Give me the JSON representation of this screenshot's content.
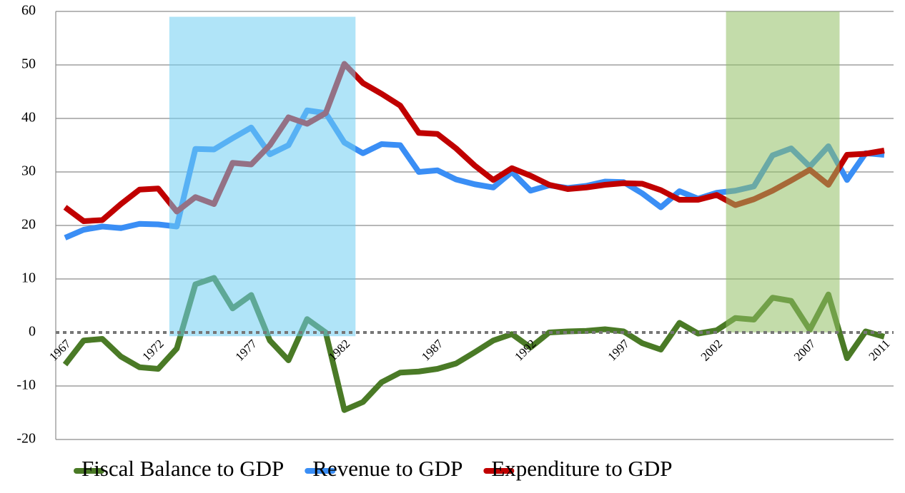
{
  "chart_data": {
    "type": "line",
    "x": [
      1967,
      1968,
      1969,
      1970,
      1971,
      1972,
      1973,
      1974,
      1975,
      1976,
      1977,
      1978,
      1979,
      1980,
      1981,
      1982,
      1983,
      1984,
      1985,
      1986,
      1987,
      1988,
      1989,
      1990,
      1991,
      1992,
      1993,
      1994,
      1995,
      1996,
      1997,
      1998,
      1999,
      2000,
      2001,
      2002,
      2003,
      2004,
      2005,
      2006,
      2007,
      2008,
      2009,
      2010,
      2011
    ],
    "series": [
      {
        "name": "Fiscal Balance to GDP",
        "color": "#4a7a26",
        "values": [
          -6,
          -1.5,
          -1.2,
          -4.5,
          -6.5,
          -6.8,
          -3,
          9,
          10.2,
          4.5,
          7,
          -1.5,
          -5.2,
          2.5,
          0,
          -14.5,
          -13,
          -9.3,
          -7.5,
          -7.3,
          -6.8,
          -5.8,
          -3.7,
          -1.5,
          -0.3,
          -2.8,
          0,
          0.2,
          0.3,
          0.6,
          0.2,
          -2,
          -3.2,
          1.8,
          -0.2,
          0.4,
          2.7,
          2.4,
          6.5,
          5.9,
          0.5,
          7.1,
          -4.8,
          0.2,
          -0.8
        ]
      },
      {
        "name": "Revenue to GDP",
        "color": "#3a8ef5",
        "values": [
          17.7,
          19.2,
          19.8,
          19.5,
          20.3,
          20.2,
          19.8,
          34.3,
          34.2,
          36.3,
          38.3,
          33.3,
          35,
          41.5,
          41,
          35.5,
          33.5,
          35.2,
          35,
          30,
          30.3,
          28.6,
          27.7,
          27.1,
          30,
          26.5,
          27.5,
          27,
          27.4,
          28.2,
          28.1,
          26,
          23.4,
          26.4,
          25,
          26.1,
          26.5,
          27.3,
          33.1,
          34.4,
          31,
          34.8,
          28.5,
          33.5,
          33.2
        ]
      },
      {
        "name": "Expenditure to GDP",
        "color": "#c00000",
        "values": [
          23.4,
          20.8,
          21,
          24,
          26.7,
          26.9,
          22.6,
          25.3,
          24,
          31.7,
          31.4,
          35,
          40.2,
          39,
          41,
          50.2,
          46.6,
          44.6,
          42.4,
          37.3,
          37.1,
          34.4,
          31.2,
          28.5,
          30.7,
          29.3,
          27.6,
          26.8,
          27.1,
          27.6,
          27.9,
          27.8,
          26.6,
          24.8,
          24.8,
          25.7,
          23.8,
          24.9,
          26.5,
          28.4,
          30.4,
          27.6,
          33.2,
          33.4,
          34
        ]
      }
    ],
    "shaded": [
      {
        "x": [
          1972.6,
          1982.6
        ],
        "y": [
          -0.7,
          59
        ],
        "color": "#6fcdf3"
      },
      {
        "x": [
          2002.5,
          2008.6
        ],
        "y": [
          0,
          60
        ],
        "color": "#92c064"
      }
    ],
    "xlim": [
      1966.5,
      2011.5
    ],
    "xticks": [
      1967,
      1972,
      1977,
      1982,
      1987,
      1992,
      1997,
      2002,
      2007,
      2011
    ],
    "ylim": [
      -20,
      60
    ],
    "yticks": [
      -20,
      -10,
      0,
      10,
      20,
      30,
      40,
      50,
      60
    ],
    "grid": true,
    "legend": "bottom"
  }
}
